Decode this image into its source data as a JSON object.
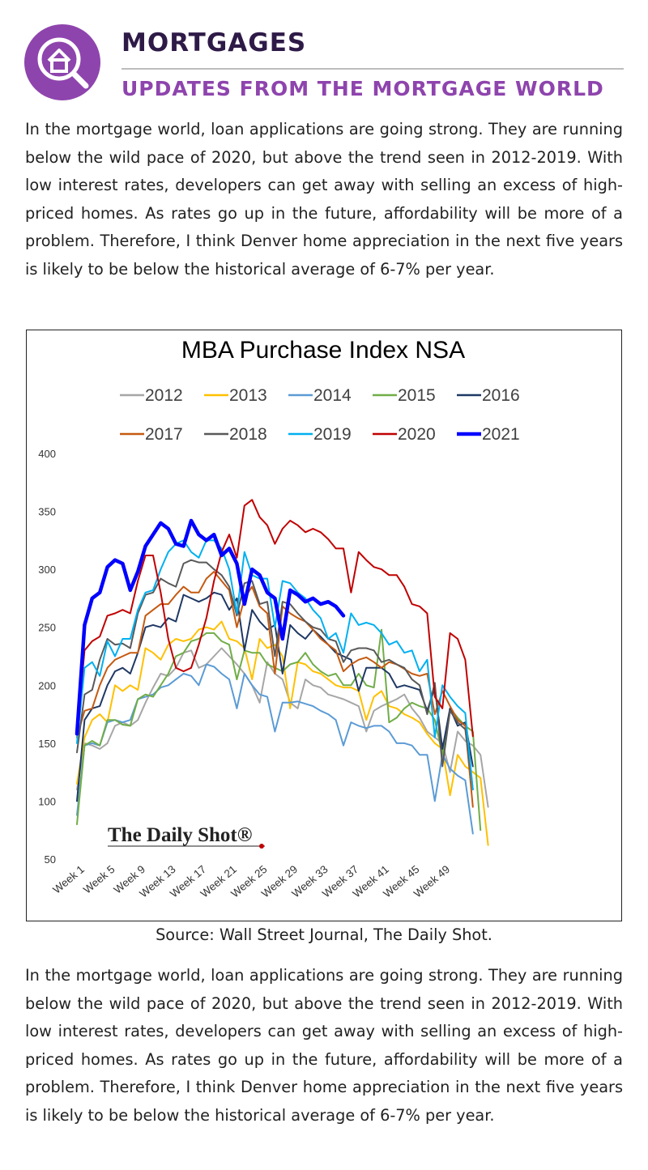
{
  "header": {
    "title": "MORTGAGES",
    "subtitle": "UPDATES FROM THE MORTGAGE WORLD",
    "icon": "house-magnifier-icon",
    "accent_color": "#8e44ad"
  },
  "paragraphs": {
    "first": "In the mortgage world, loan applications are going strong. They are running below the wild pace of 2020, but above the trend seen in 2012-2019. With low interest rates, developers can get away with selling an excess of high-priced homes. As rates go up in the future, affordability will be more of a problem. Therefore, I think Denver home appreciation in the next five years is likely to be below the historical average of 6-7% per year.",
    "second": "In the mortgage world, loan applications are going strong. They are running below the wild pace of 2020, but above the trend seen in 2012-2019. With low interest rates, developers can get away with selling an excess of high-priced homes. As rates go up in the future, affordability will be more of a problem. Therefore, I think Denver home appreciation in the next five years is likely to be below the historical average of 6-7% per year."
  },
  "caption": "Source: Wall Street Journal, The Daily Shot.",
  "chart_data": {
    "type": "line",
    "title": "MBA Purchase Index NSA",
    "watermark": "The Daily Shot®",
    "xlabel": "",
    "ylabel": "",
    "ylim": [
      50,
      400
    ],
    "yticks": [
      50,
      100,
      150,
      200,
      250,
      300,
      350,
      400
    ],
    "x_start_week": 1,
    "x_end_week": 52,
    "xtick_labels": [
      "Week 1",
      "Week 5",
      "Week 9",
      "Week 13",
      "Week 17",
      "Week 21",
      "Week 25",
      "Week 29",
      "Week 33",
      "Week 37",
      "Week 41",
      "Week 45",
      "Week 49"
    ],
    "xtick_weeks": [
      1,
      5,
      9,
      13,
      17,
      21,
      25,
      29,
      33,
      37,
      41,
      45,
      49
    ],
    "grid": false,
    "legend_position": "top",
    "series": [
      {
        "name": "2012",
        "color": "#a6a6a6",
        "width": 2,
        "values": [
          110,
          150,
          148,
          145,
          150,
          165,
          168,
          165,
          170,
          185,
          198,
          210,
          208,
          215,
          228,
          230,
          215,
          218,
          225,
          232,
          225,
          218,
          210,
          200,
          185,
          220,
          210,
          205,
          185,
          180,
          205,
          200,
          198,
          192,
          190,
          188,
          185,
          182,
          160,
          178,
          182,
          185,
          188,
          192,
          180,
          172,
          160,
          155,
          150,
          125,
          160,
          152,
          148,
          140,
          95
        ]
      },
      {
        "name": "2013",
        "color": "#ffc000",
        "width": 2,
        "values": [
          115,
          155,
          170,
          175,
          168,
          200,
          195,
          200,
          196,
          232,
          228,
          222,
          235,
          240,
          238,
          240,
          248,
          250,
          248,
          255,
          240,
          238,
          232,
          205,
          240,
          232,
          235,
          225,
          180,
          220,
          218,
          212,
          210,
          205,
          200,
          198,
          198,
          195,
          170,
          190,
          195,
          182,
          180,
          175,
          172,
          168,
          158,
          150,
          145,
          105,
          140,
          130,
          125,
          120,
          62
        ]
      },
      {
        "name": "2014",
        "color": "#5b9bd5",
        "width": 2,
        "values": [
          88,
          148,
          150,
          148,
          168,
          170,
          168,
          170,
          188,
          190,
          192,
          198,
          200,
          205,
          210,
          208,
          200,
          218,
          216,
          210,
          205,
          180,
          210,
          200,
          192,
          190,
          160,
          185,
          185,
          186,
          184,
          182,
          178,
          175,
          170,
          148,
          168,
          165,
          163,
          165,
          165,
          160,
          150,
          150,
          148,
          140,
          140,
          100,
          140,
          128,
          122,
          118,
          72
        ]
      },
      {
        "name": "2015",
        "color": "#70ad47",
        "width": 2,
        "values": [
          80,
          148,
          152,
          148,
          170,
          170,
          166,
          165,
          188,
          192,
          190,
          200,
          210,
          225,
          228,
          238,
          240,
          245,
          245,
          238,
          235,
          205,
          230,
          228,
          228,
          218,
          215,
          212,
          218,
          220,
          228,
          218,
          212,
          208,
          210,
          200,
          200,
          210,
          200,
          198,
          248,
          168,
          172,
          180,
          185,
          182,
          180,
          170,
          140,
          180,
          172,
          165,
          160,
          75
        ]
      },
      {
        "name": "2016",
        "color": "#1f3864",
        "width": 2,
        "values": [
          100,
          170,
          180,
          182,
          200,
          212,
          215,
          210,
          228,
          250,
          252,
          250,
          258,
          255,
          278,
          275,
          272,
          275,
          280,
          278,
          265,
          275,
          230,
          265,
          255,
          248,
          252,
          210,
          252,
          245,
          240,
          248,
          242,
          235,
          228,
          225,
          222,
          195,
          215,
          215,
          215,
          210,
          198,
          200,
          198,
          196,
          178,
          198,
          145,
          180,
          165,
          168,
          130
        ]
      },
      {
        "name": "2017",
        "color": "#c55a11",
        "width": 2,
        "values": [
          155,
          178,
          180,
          200,
          215,
          222,
          225,
          228,
          228,
          260,
          265,
          270,
          270,
          278,
          285,
          280,
          280,
          292,
          298,
          290,
          282,
          250,
          275,
          285,
          268,
          262,
          210,
          268,
          262,
          258,
          255,
          248,
          240,
          235,
          230,
          212,
          218,
          222,
          224,
          220,
          215,
          220,
          218,
          214,
          210,
          208,
          210,
          175,
          195,
          182,
          170,
          165,
          95
        ]
      },
      {
        "name": "2018",
        "color": "#595959",
        "width": 2,
        "values": [
          142,
          192,
          196,
          222,
          240,
          235,
          236,
          232,
          262,
          278,
          280,
          292,
          288,
          285,
          305,
          308,
          306,
          306,
          300,
          295,
          285,
          260,
          288,
          290,
          270,
          272,
          225,
          272,
          270,
          262,
          255,
          250,
          248,
          240,
          238,
          220,
          230,
          232,
          232,
          230,
          220,
          222,
          218,
          215,
          205,
          200,
          175,
          202,
          130,
          178,
          168,
          162,
          110
        ]
      },
      {
        "name": "2019",
        "color": "#00b0f0",
        "width": 2,
        "values": [
          150,
          215,
          220,
          208,
          238,
          225,
          240,
          240,
          265,
          280,
          282,
          300,
          315,
          322,
          325,
          315,
          310,
          325,
          325,
          318,
          300,
          262,
          315,
          295,
          292,
          292,
          250,
          290,
          288,
          280,
          275,
          265,
          258,
          240,
          245,
          228,
          262,
          252,
          254,
          252,
          245,
          235,
          238,
          228,
          230,
          212,
          222,
          155,
          200,
          190,
          182,
          176,
          110
        ]
      },
      {
        "name": "2020",
        "color": "#c00000",
        "width": 2,
        "values": [
          160,
          230,
          238,
          242,
          260,
          262,
          265,
          262,
          290,
          312,
          312,
          280,
          240,
          215,
          212,
          215,
          235,
          258,
          290,
          315,
          330,
          310,
          355,
          360,
          345,
          338,
          322,
          335,
          342,
          338,
          332,
          335,
          332,
          326,
          318,
          318,
          280,
          315,
          308,
          302,
          300,
          295,
          295,
          285,
          270,
          268,
          262,
          190,
          180,
          245,
          240,
          222,
          156
        ]
      },
      {
        "name": "2021",
        "color": "#0000ff",
        "width": 4.5,
        "values": [
          158,
          252,
          275,
          280,
          302,
          308,
          305,
          282,
          298,
          320,
          330,
          340,
          335,
          322,
          320,
          342,
          330,
          325,
          330,
          312,
          318,
          305,
          270,
          300,
          295,
          280,
          275,
          240,
          282,
          278,
          272,
          275,
          270,
          272,
          268,
          260
        ]
      }
    ]
  }
}
